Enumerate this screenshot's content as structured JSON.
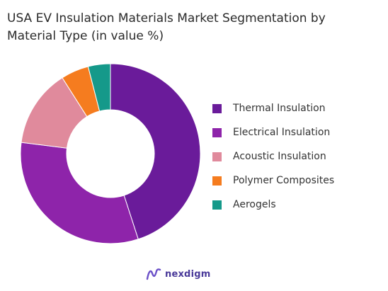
{
  "chart_data": {
    "type": "pie",
    "title_lines": [
      "USA EV Insulation Materials Market Segmentation by",
      "Material Type (in value %)"
    ],
    "categories": [
      "Thermal Insulation",
      "Electrical Insulation",
      "Acoustic Insulation",
      "Polymer Composites",
      "Aerogels"
    ],
    "values": [
      45,
      32,
      14,
      5,
      4
    ],
    "colors": [
      "#6a1b9a",
      "#8e24aa",
      "#e08a9c",
      "#f57c1f",
      "#15998a"
    ],
    "donut": true,
    "legend_position": "right"
  },
  "brand": {
    "name": "nexdigm",
    "logo_icon": "nexdigm-logo-icon",
    "color": "#4a3a9a"
  }
}
